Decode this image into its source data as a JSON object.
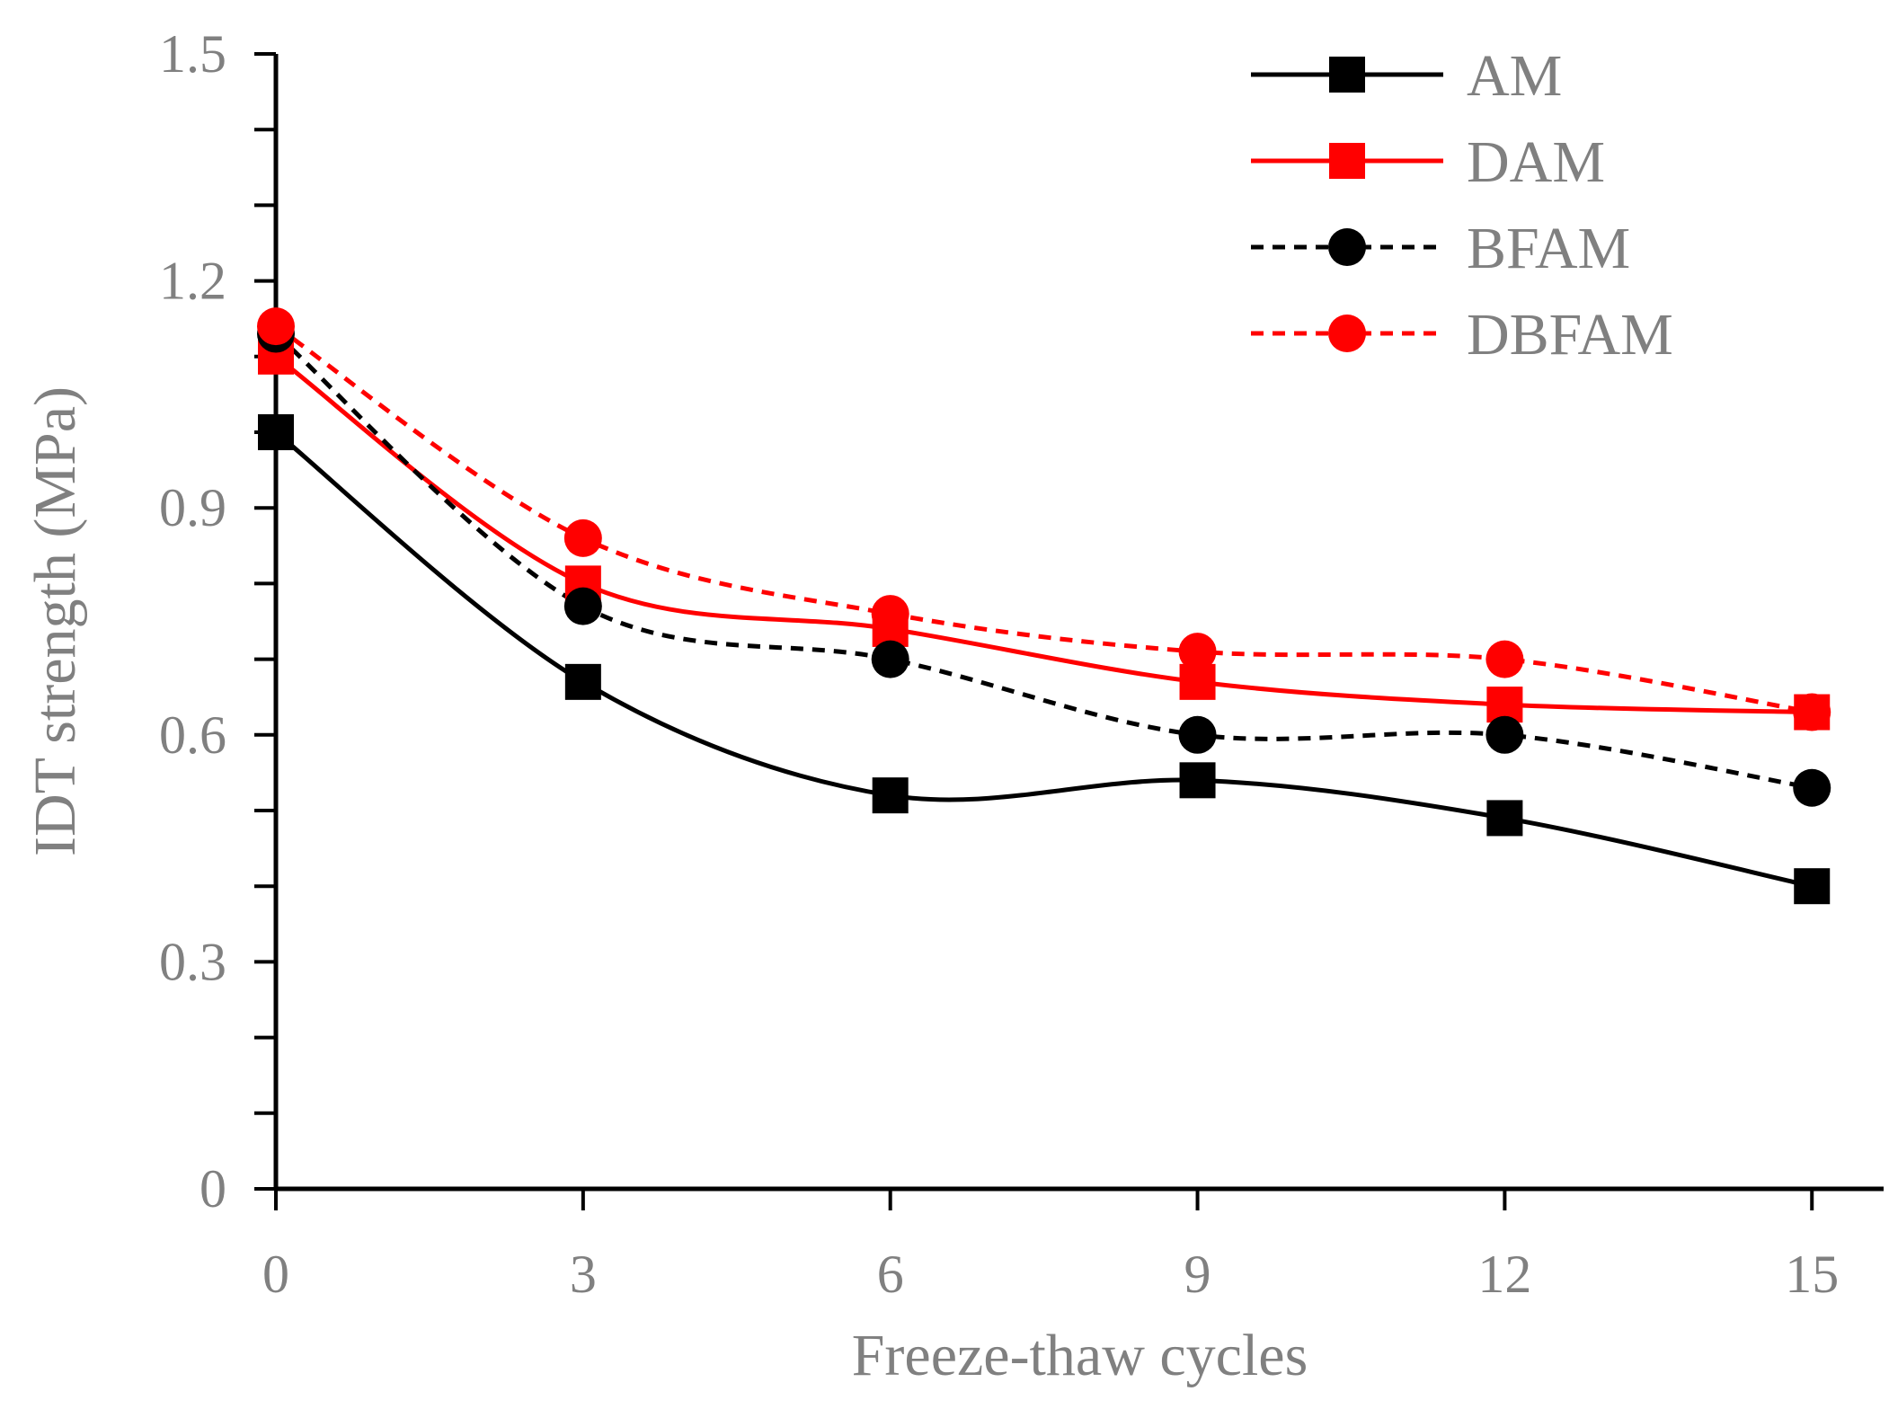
{
  "chart_data": {
    "type": "line",
    "xlabel": "Freeze-thaw cycles",
    "ylabel": "IDT strength (MPa)",
    "x": [
      0,
      3,
      6,
      9,
      12,
      15
    ],
    "xticks": [
      "0",
      "3",
      "6",
      "9",
      "12",
      "15"
    ],
    "yticks": [
      "0",
      "0.3",
      "0.6",
      "0.9",
      "1.2",
      "1.5"
    ],
    "xlim": [
      0,
      15.7
    ],
    "ylim": [
      0,
      1.5
    ],
    "grid": false,
    "legend_position": "top-right",
    "smooth": true,
    "series": [
      {
        "name": "AM",
        "values": [
          1.0,
          0.67,
          0.52,
          0.54,
          0.49,
          0.4
        ],
        "color": "#000000",
        "marker": "square",
        "dashed": false
      },
      {
        "name": "DAM",
        "values": [
          1.1,
          0.8,
          0.74,
          0.67,
          0.64,
          0.63
        ],
        "color": "#ff0000",
        "marker": "square",
        "dashed": false
      },
      {
        "name": "BFAM",
        "values": [
          1.13,
          0.77,
          0.7,
          0.6,
          0.6,
          0.53
        ],
        "color": "#000000",
        "marker": "circle",
        "dashed": true
      },
      {
        "name": "DBFAM",
        "values": [
          1.14,
          0.86,
          0.76,
          0.71,
          0.7,
          0.63
        ],
        "color": "#ff0000",
        "marker": "circle",
        "dashed": true
      }
    ]
  }
}
